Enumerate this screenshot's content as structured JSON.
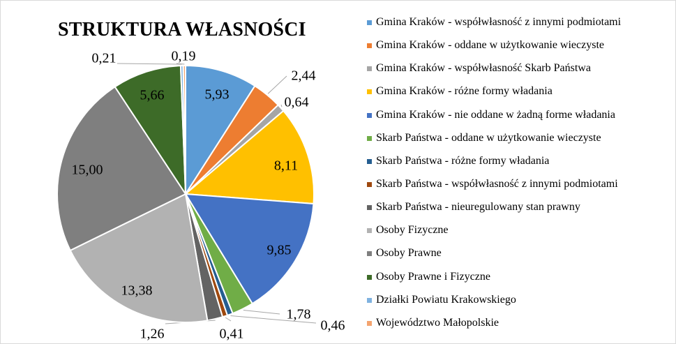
{
  "chart_data": {
    "type": "pie",
    "title": "STRUKTURA WŁASNOŚCI",
    "legend_position": "right",
    "slices": [
      {
        "name": "Gmina Kraków - współwłasność z innymi podmiotami",
        "value": 5.93,
        "label": "5,93",
        "color": "#5b9bd5"
      },
      {
        "name": "Gmina Kraków - oddane w użytkowanie wieczyste",
        "value": 2.44,
        "label": "2,44",
        "color": "#ed7d31"
      },
      {
        "name": "Gmina Kraków - współwłasność Skarb Państwa",
        "value": 0.64,
        "label": "0,64",
        "color": "#a5a5a5"
      },
      {
        "name": "Gmina Kraków - różne formy władania",
        "value": 8.11,
        "label": "8,11",
        "color": "#ffc000"
      },
      {
        "name": "Gmina Kraków - nie oddane w żadną forme władania",
        "value": 9.85,
        "label": "9,85",
        "color": "#4472c4"
      },
      {
        "name": "Skarb Państwa - oddane w użytkowanie wieczyste",
        "value": 1.78,
        "label": "1,78",
        "color": "#70ad47"
      },
      {
        "name": "Skarb Państwa - różne formy władania",
        "value": 0.46,
        "label": "0,46",
        "color": "#255e91"
      },
      {
        "name": "Skarb Państwa - współwłasność z innymi podmiotami",
        "value": 0.41,
        "label": "0,41",
        "color": "#9e480e"
      },
      {
        "name": "Skarb Państwa - nieuregulowany stan prawny",
        "value": 1.26,
        "label": "1,26",
        "color": "#636363"
      },
      {
        "name": "Osoby Fizyczne",
        "value": 13.38,
        "label": "13,38",
        "color": "#b2b2b2"
      },
      {
        "name": "Osoby Prawne",
        "value": 15.0,
        "label": "15,00",
        "color": "#7f7f7f"
      },
      {
        "name": "Osoby Prawne i Fizyczne",
        "value": 5.66,
        "label": "5,66",
        "color": "#3d6b28"
      },
      {
        "name": "Działki Powiatu Krakowskiego",
        "value": 0.21,
        "label": "0,21",
        "color": "#7fb2e0"
      },
      {
        "name": "Województwo Małopolskie",
        "value": 0.19,
        "label": "0,19",
        "color": "#f4a46f"
      }
    ]
  }
}
